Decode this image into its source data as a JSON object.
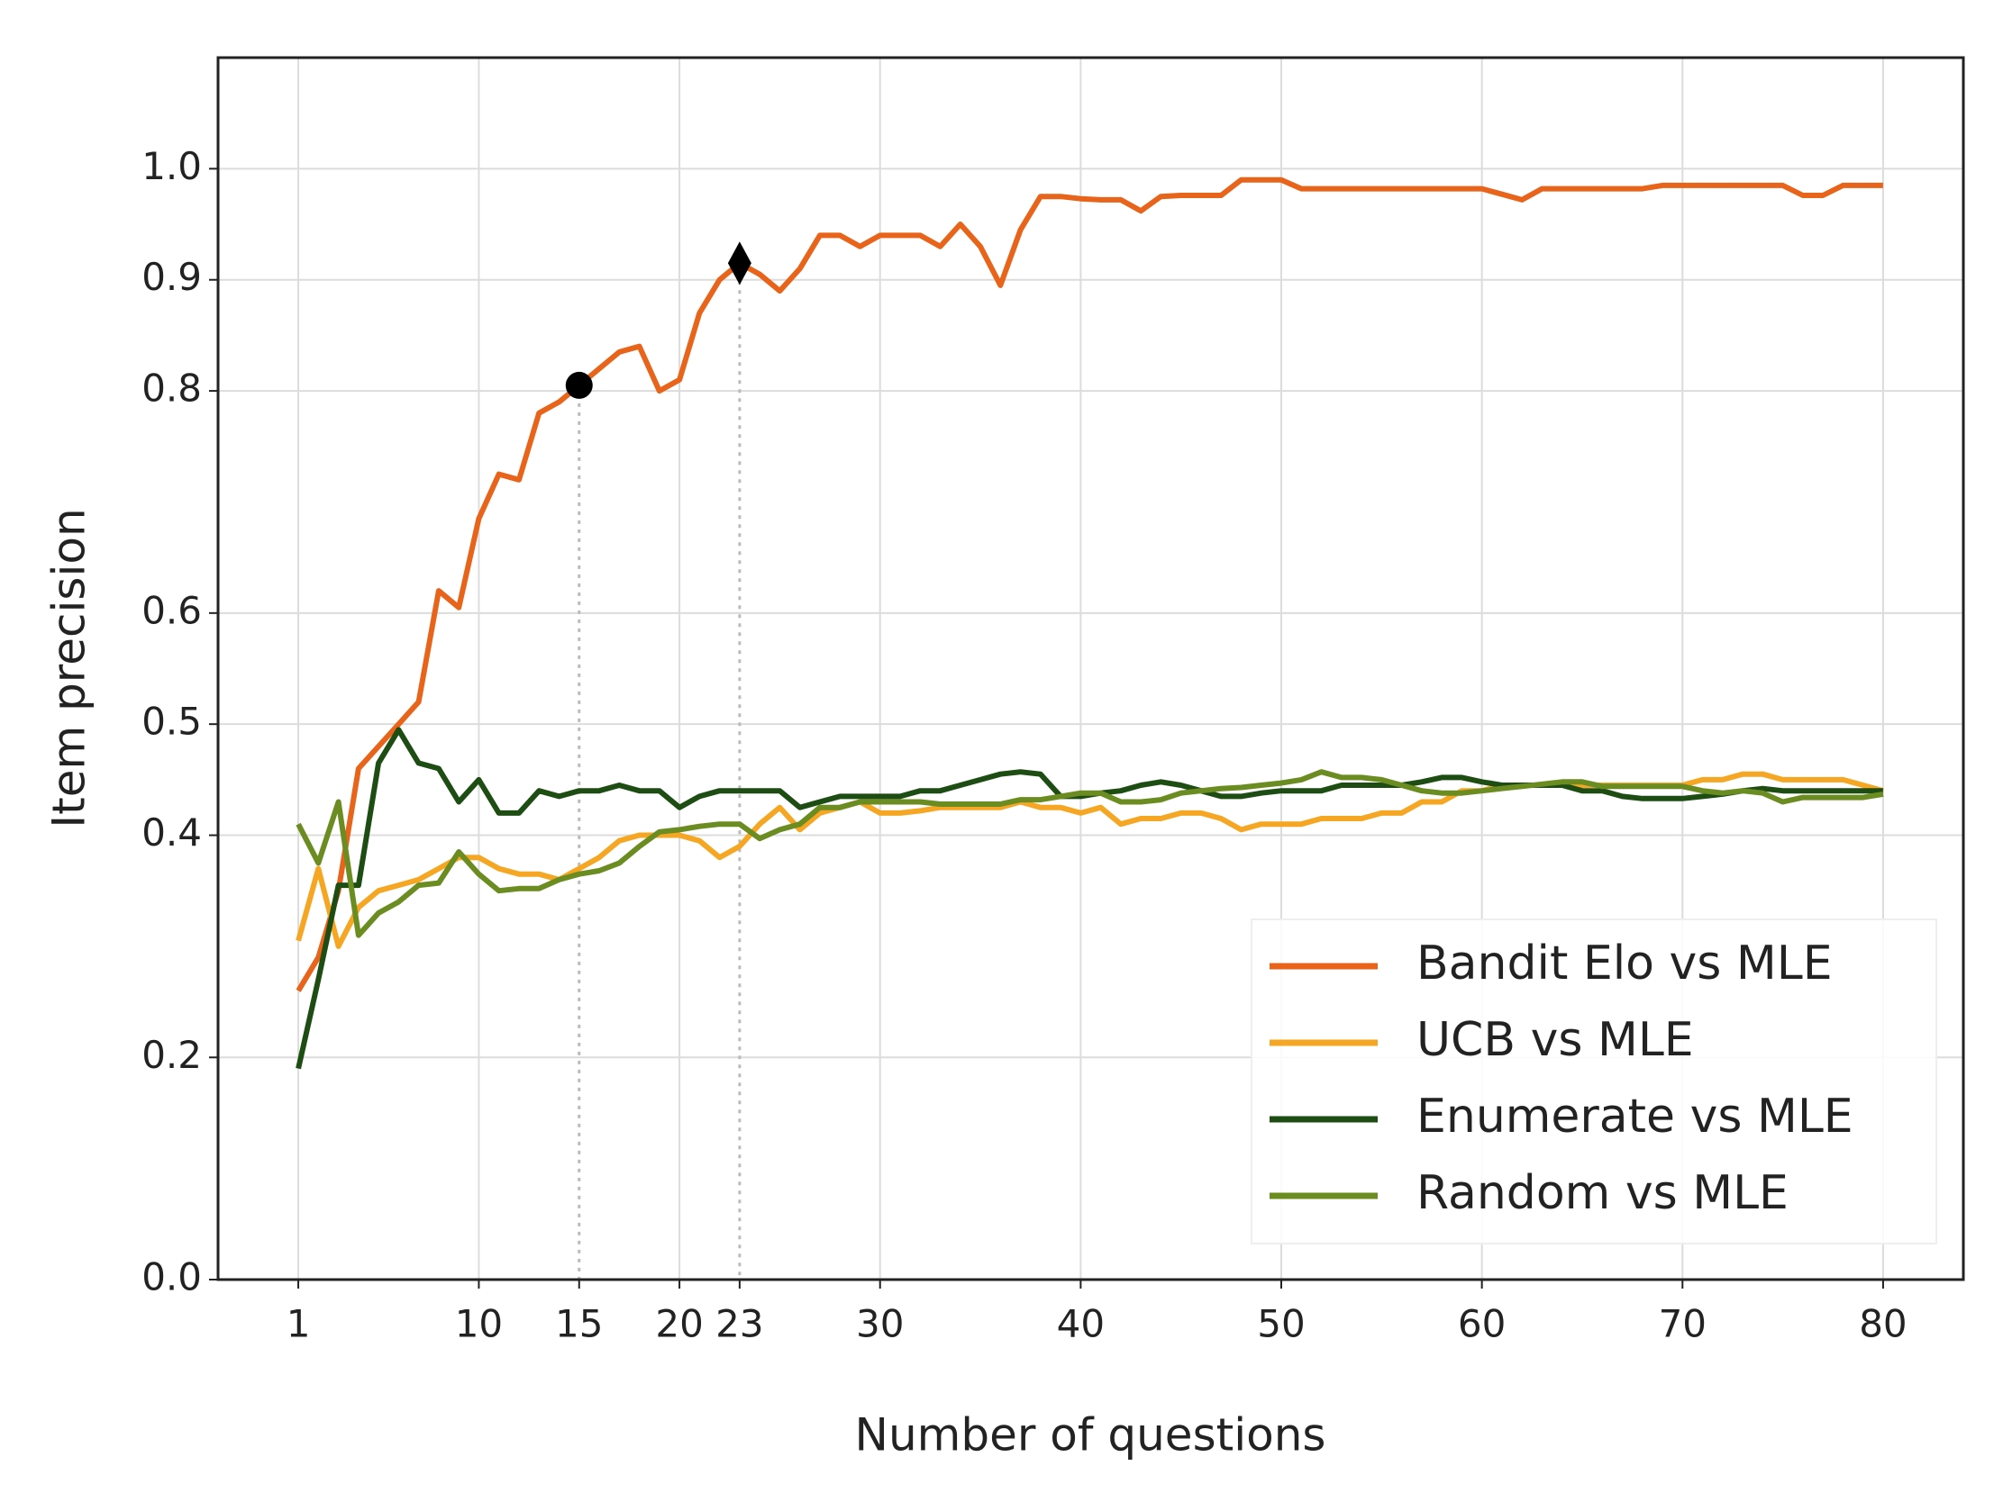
{
  "chart_data": {
    "type": "line",
    "x_label": "Number of questions",
    "y_label": "Item precision",
    "xlim": [
      -3,
      84
    ],
    "ylim": [
      0,
      1.1
    ],
    "xticks": [
      1,
      10,
      15,
      20,
      23,
      30,
      40,
      50,
      60,
      70,
      80
    ],
    "yticks": [
      {
        "value": 0,
        "label": "0.0"
      },
      0.2,
      0.4,
      0.5,
      0.6,
      0.8,
      0.9,
      {
        "value": 1,
        "label": "1.0"
      }
    ],
    "grid": true,
    "legend": "lower right",
    "x": [
      1,
      2,
      3,
      4,
      5,
      6,
      7,
      8,
      9,
      10,
      11,
      12,
      13,
      14,
      15,
      16,
      17,
      18,
      19,
      20,
      21,
      22,
      23,
      24,
      25,
      26,
      27,
      28,
      29,
      30,
      31,
      32,
      33,
      34,
      35,
      36,
      37,
      38,
      39,
      40,
      41,
      42,
      43,
      44,
      45,
      46,
      47,
      48,
      49,
      50,
      51,
      52,
      53,
      54,
      55,
      56,
      57,
      58,
      59,
      60,
      61,
      62,
      63,
      64,
      65,
      66,
      67,
      68,
      69,
      70,
      71,
      72,
      73,
      74,
      75,
      76,
      77,
      78,
      79,
      80
    ],
    "series": [
      {
        "name": "Bandit Elo vs MLE",
        "color": "#e8641b",
        "values": [
          0.26,
          0.29,
          0.35,
          0.46,
          0.48,
          0.5,
          0.52,
          0.62,
          0.605,
          0.685,
          0.725,
          0.72,
          0.78,
          0.79,
          0.805,
          0.82,
          0.835,
          0.84,
          0.8,
          0.81,
          0.87,
          0.9,
          0.915,
          0.905,
          0.89,
          0.91,
          0.94,
          0.94,
          0.93,
          0.94,
          0.94,
          0.94,
          0.93,
          0.95,
          0.93,
          0.895,
          0.945,
          0.975,
          0.975,
          0.973,
          0.972,
          0.972,
          0.962,
          0.975,
          0.976,
          0.976,
          0.976,
          0.99,
          0.99,
          0.99,
          0.982,
          0.982,
          0.982,
          0.982,
          0.982,
          0.982,
          0.982,
          0.982,
          0.982,
          0.982,
          0.977,
          0.972,
          0.982,
          0.982,
          0.982,
          0.982,
          0.982,
          0.982,
          0.985,
          0.985,
          0.985,
          0.985,
          0.985,
          0.985,
          0.985,
          0.976,
          0.976,
          0.985,
          0.985,
          0.985
        ]
      },
      {
        "name": "UCB vs MLE",
        "color": "#f5a623",
        "values": [
          0.305,
          0.37,
          0.3,
          0.335,
          0.35,
          0.355,
          0.36,
          0.37,
          0.38,
          0.38,
          0.37,
          0.365,
          0.365,
          0.36,
          0.37,
          0.38,
          0.395,
          0.4,
          0.4,
          0.4,
          0.395,
          0.38,
          0.39,
          0.41,
          0.425,
          0.405,
          0.42,
          0.425,
          0.43,
          0.42,
          0.42,
          0.422,
          0.425,
          0.425,
          0.425,
          0.425,
          0.43,
          0.425,
          0.425,
          0.42,
          0.425,
          0.41,
          0.415,
          0.415,
          0.42,
          0.42,
          0.415,
          0.405,
          0.41,
          0.41,
          0.41,
          0.415,
          0.415,
          0.415,
          0.42,
          0.42,
          0.43,
          0.43,
          0.44,
          0.44,
          0.445,
          0.445,
          0.445,
          0.445,
          0.445,
          0.445,
          0.445,
          0.445,
          0.445,
          0.445,
          0.45,
          0.45,
          0.455,
          0.455,
          0.45,
          0.45,
          0.45,
          0.45,
          0.445,
          0.44
        ]
      },
      {
        "name": "Enumerate vs MLE",
        "color": "#1e4d14",
        "values": [
          0.19,
          0.27,
          0.355,
          0.355,
          0.465,
          0.495,
          0.465,
          0.46,
          0.43,
          0.45,
          0.42,
          0.42,
          0.44,
          0.435,
          0.44,
          0.44,
          0.445,
          0.44,
          0.44,
          0.425,
          0.435,
          0.44,
          0.44,
          0.44,
          0.44,
          0.425,
          0.43,
          0.435,
          0.435,
          0.435,
          0.435,
          0.44,
          0.44,
          0.445,
          0.45,
          0.455,
          0.457,
          0.455,
          0.435,
          0.435,
          0.438,
          0.44,
          0.445,
          0.448,
          0.445,
          0.44,
          0.435,
          0.435,
          0.438,
          0.44,
          0.44,
          0.44,
          0.445,
          0.445,
          0.445,
          0.445,
          0.448,
          0.452,
          0.452,
          0.448,
          0.445,
          0.445,
          0.445,
          0.445,
          0.44,
          0.44,
          0.435,
          0.433,
          0.433,
          0.433,
          0.435,
          0.437,
          0.44,
          0.442,
          0.44,
          0.44,
          0.44,
          0.44,
          0.44,
          0.44
        ]
      },
      {
        "name": "Random vs MLE",
        "color": "#6b8c21",
        "values": [
          0.41,
          0.375,
          0.43,
          0.31,
          0.33,
          0.34,
          0.355,
          0.357,
          0.385,
          0.365,
          0.35,
          0.352,
          0.352,
          0.36,
          0.365,
          0.368,
          0.375,
          0.39,
          0.403,
          0.405,
          0.408,
          0.41,
          0.41,
          0.397,
          0.405,
          0.41,
          0.425,
          0.425,
          0.43,
          0.43,
          0.43,
          0.43,
          0.428,
          0.428,
          0.428,
          0.428,
          0.432,
          0.432,
          0.435,
          0.438,
          0.438,
          0.43,
          0.43,
          0.432,
          0.438,
          0.44,
          0.442,
          0.443,
          0.445,
          0.447,
          0.45,
          0.457,
          0.452,
          0.452,
          0.45,
          0.445,
          0.44,
          0.438,
          0.438,
          0.44,
          0.442,
          0.444,
          0.446,
          0.448,
          0.448,
          0.444,
          0.444,
          0.444,
          0.444,
          0.444,
          0.44,
          0.438,
          0.44,
          0.438,
          0.43,
          0.434,
          0.434,
          0.434,
          0.434,
          0.437
        ]
      }
    ],
    "annotations": [
      {
        "x": 15,
        "y": 0.805,
        "marker": "circle"
      },
      {
        "x": 23,
        "y": 0.915,
        "marker": "diamond"
      }
    ]
  }
}
